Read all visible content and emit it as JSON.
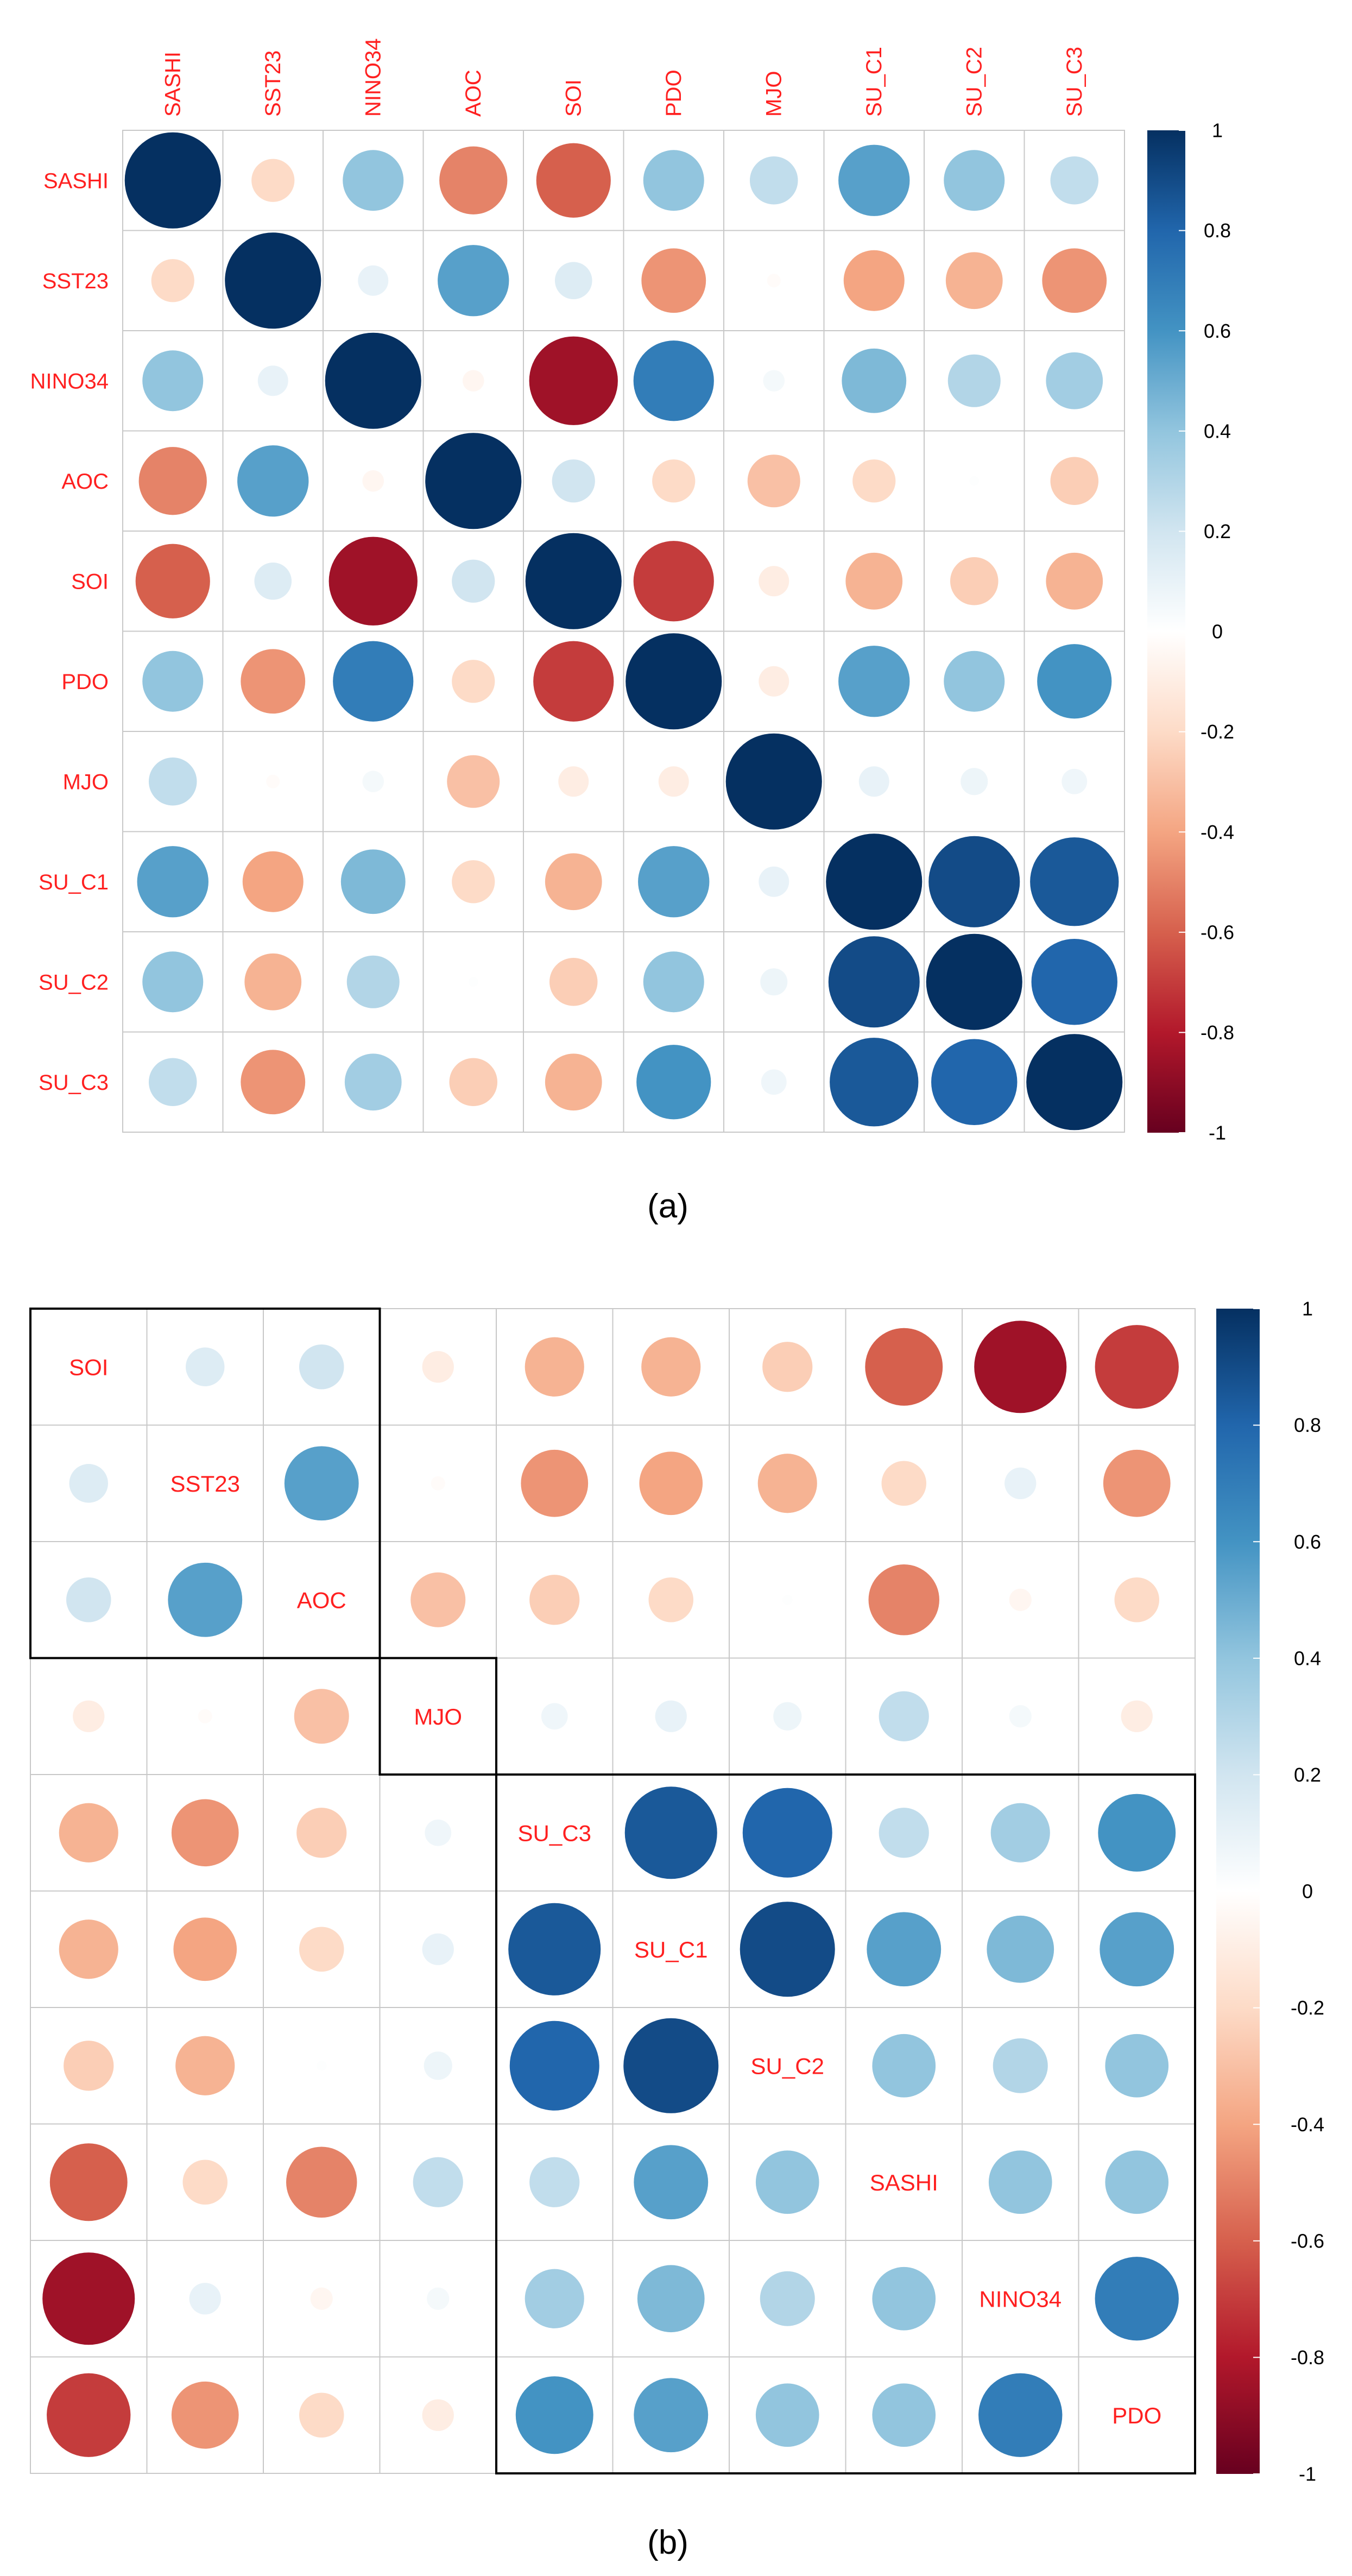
{
  "colors": {
    "label": "#ff2020",
    "grid": "#c8c8c8",
    "text": "#000000",
    "scale": [
      "#67001f",
      "#b2182b",
      "#d6604d",
      "#f4a582",
      "#fddbc7",
      "#ffffff",
      "#d1e5f0",
      "#92c5de",
      "#4393c3",
      "#2166ac",
      "#053061"
    ]
  },
  "chart_data": [
    {
      "type": "heatmap",
      "caption": "(a)",
      "variables": [
        "SASHI",
        "SST23",
        "NINO34",
        "AOC",
        "SOI",
        "PDO",
        "MJO",
        "SU_C1",
        "SU_C2",
        "SU_C3"
      ],
      "matrix": [
        [
          1.0,
          -0.2,
          0.4,
          -0.5,
          -0.6,
          0.4,
          0.25,
          0.55,
          0.4,
          0.25
        ],
        [
          -0.2,
          1.0,
          0.1,
          0.55,
          0.15,
          -0.45,
          -0.02,
          -0.4,
          -0.35,
          -0.45
        ],
        [
          0.4,
          0.1,
          1.0,
          -0.05,
          -0.85,
          0.7,
          0.05,
          0.45,
          0.3,
          0.35
        ],
        [
          -0.5,
          0.55,
          -0.05,
          1.0,
          0.2,
          -0.2,
          -0.3,
          -0.2,
          0.01,
          -0.25
        ],
        [
          -0.6,
          0.15,
          -0.85,
          0.2,
          1.0,
          -0.7,
          -0.1,
          -0.35,
          -0.25,
          -0.35
        ],
        [
          0.4,
          -0.45,
          0.7,
          -0.2,
          -0.7,
          1.0,
          -0.1,
          0.55,
          0.4,
          0.6
        ],
        [
          0.25,
          -0.02,
          0.05,
          -0.3,
          -0.1,
          -0.1,
          1.0,
          0.1,
          0.08,
          0.07
        ],
        [
          0.55,
          -0.4,
          0.45,
          -0.2,
          -0.35,
          0.55,
          0.1,
          1.0,
          0.9,
          0.85
        ],
        [
          0.4,
          -0.35,
          0.3,
          0.01,
          -0.25,
          0.4,
          0.08,
          0.9,
          1.0,
          0.8
        ],
        [
          0.25,
          -0.45,
          0.35,
          -0.25,
          -0.35,
          0.6,
          0.07,
          0.85,
          0.8,
          1.0
        ]
      ],
      "colorbar": {
        "range": [
          -1,
          1
        ],
        "ticks": [
          "1",
          "0.8",
          "0.6",
          "0.4",
          "0.2",
          "0",
          "-0.2",
          "-0.4",
          "-0.6",
          "-0.8",
          "-1"
        ]
      }
    },
    {
      "type": "heatmap",
      "caption": "(b)",
      "variables": [
        "SOI",
        "SST23",
        "AOC",
        "MJO",
        "SU_C3",
        "SU_C1",
        "SU_C2",
        "SASHI",
        "NINO34",
        "PDO"
      ],
      "matrix": [
        [
          1.0,
          0.15,
          0.2,
          -0.1,
          -0.35,
          -0.35,
          -0.25,
          -0.6,
          -0.85,
          -0.7
        ],
        [
          0.15,
          1.0,
          0.55,
          -0.02,
          -0.45,
          -0.4,
          -0.35,
          -0.2,
          0.1,
          -0.45
        ],
        [
          0.2,
          0.55,
          1.0,
          -0.3,
          -0.25,
          -0.2,
          0.01,
          -0.5,
          -0.05,
          -0.2
        ],
        [
          -0.1,
          -0.02,
          -0.3,
          1.0,
          0.07,
          0.1,
          0.08,
          0.25,
          0.05,
          -0.1
        ],
        [
          -0.35,
          -0.45,
          -0.25,
          0.07,
          1.0,
          0.85,
          0.8,
          0.25,
          0.35,
          0.6
        ],
        [
          -0.35,
          -0.4,
          -0.2,
          0.1,
          0.85,
          1.0,
          0.9,
          0.55,
          0.45,
          0.55
        ],
        [
          -0.25,
          -0.35,
          0.01,
          0.08,
          0.8,
          0.9,
          1.0,
          0.4,
          0.3,
          0.4
        ],
        [
          -0.6,
          -0.2,
          -0.5,
          0.25,
          0.25,
          0.55,
          0.4,
          1.0,
          0.4,
          0.4
        ],
        [
          -0.85,
          0.1,
          -0.05,
          0.05,
          0.35,
          0.45,
          0.3,
          0.4,
          1.0,
          0.7
        ],
        [
          -0.7,
          -0.45,
          -0.2,
          -0.1,
          0.6,
          0.55,
          0.4,
          0.4,
          0.7,
          1.0
        ]
      ],
      "clusters": [
        {
          "start": 0,
          "end": 2
        },
        {
          "start": 3,
          "end": 3
        },
        {
          "start": 4,
          "end": 9
        }
      ],
      "colorbar": {
        "range": [
          -1,
          1
        ],
        "ticks": [
          "1",
          "0.8",
          "0.6",
          "0.4",
          "0.2",
          "0",
          "-0.2",
          "-0.4",
          "-0.6",
          "-0.8",
          "-1"
        ]
      }
    }
  ]
}
